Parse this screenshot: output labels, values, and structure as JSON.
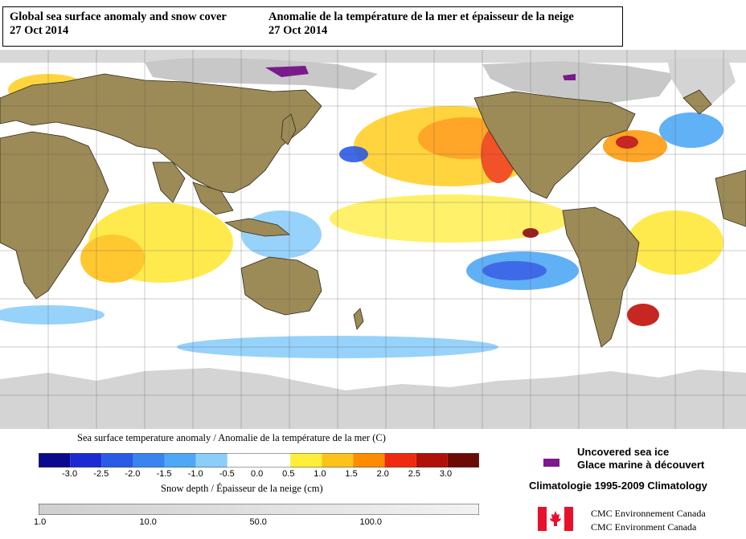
{
  "header": {
    "title_en": "Global sea surface anomaly and snow cover",
    "date_en": "27 Oct 2014",
    "title_fr": "Anomalie de la température de la mer et épaisseur de la neige",
    "date_fr": "27 Oct 2014"
  },
  "sst_legend": {
    "title": "Sea surface temperature anomaly / Anomalie de la température de la mer (C)",
    "ticks": [
      "-3.0",
      "-2.5",
      "-2.0",
      "-1.5",
      "-1.0",
      "-0.5",
      "0.0",
      "0.5",
      "1.0",
      "1.5",
      "2.0",
      "2.5",
      "3.0"
    ],
    "colors": [
      "#0a0a8c",
      "#1c2ad4",
      "#2a5ae6",
      "#3a84f0",
      "#4fa8f5",
      "#8ccdfa",
      "#ffffff",
      "#ffffff",
      "#ffef3a",
      "#ffc21a",
      "#ff8c00",
      "#f02a10",
      "#b01008",
      "#6e0a06"
    ]
  },
  "snow_legend": {
    "title": "Snow depth / Épaisseur de la neige (cm)",
    "ticks": [
      "1.0",
      "10.0",
      "50.0",
      "100.0"
    ]
  },
  "sea_ice": {
    "label_en": "Uncovered sea ice",
    "label_fr": "Glace marine à découvert",
    "color": "#7a1a8c"
  },
  "climatology": "Climatologie 1995-2009 Climatology",
  "credits": [
    "CMC Environnement Canada",
    "CMC Environment Canada"
  ],
  "colors": {
    "land": "#9c8a57",
    "snow": "#c8c8c8",
    "ice": "#dcdcdc",
    "ocean": "#ffffff"
  }
}
